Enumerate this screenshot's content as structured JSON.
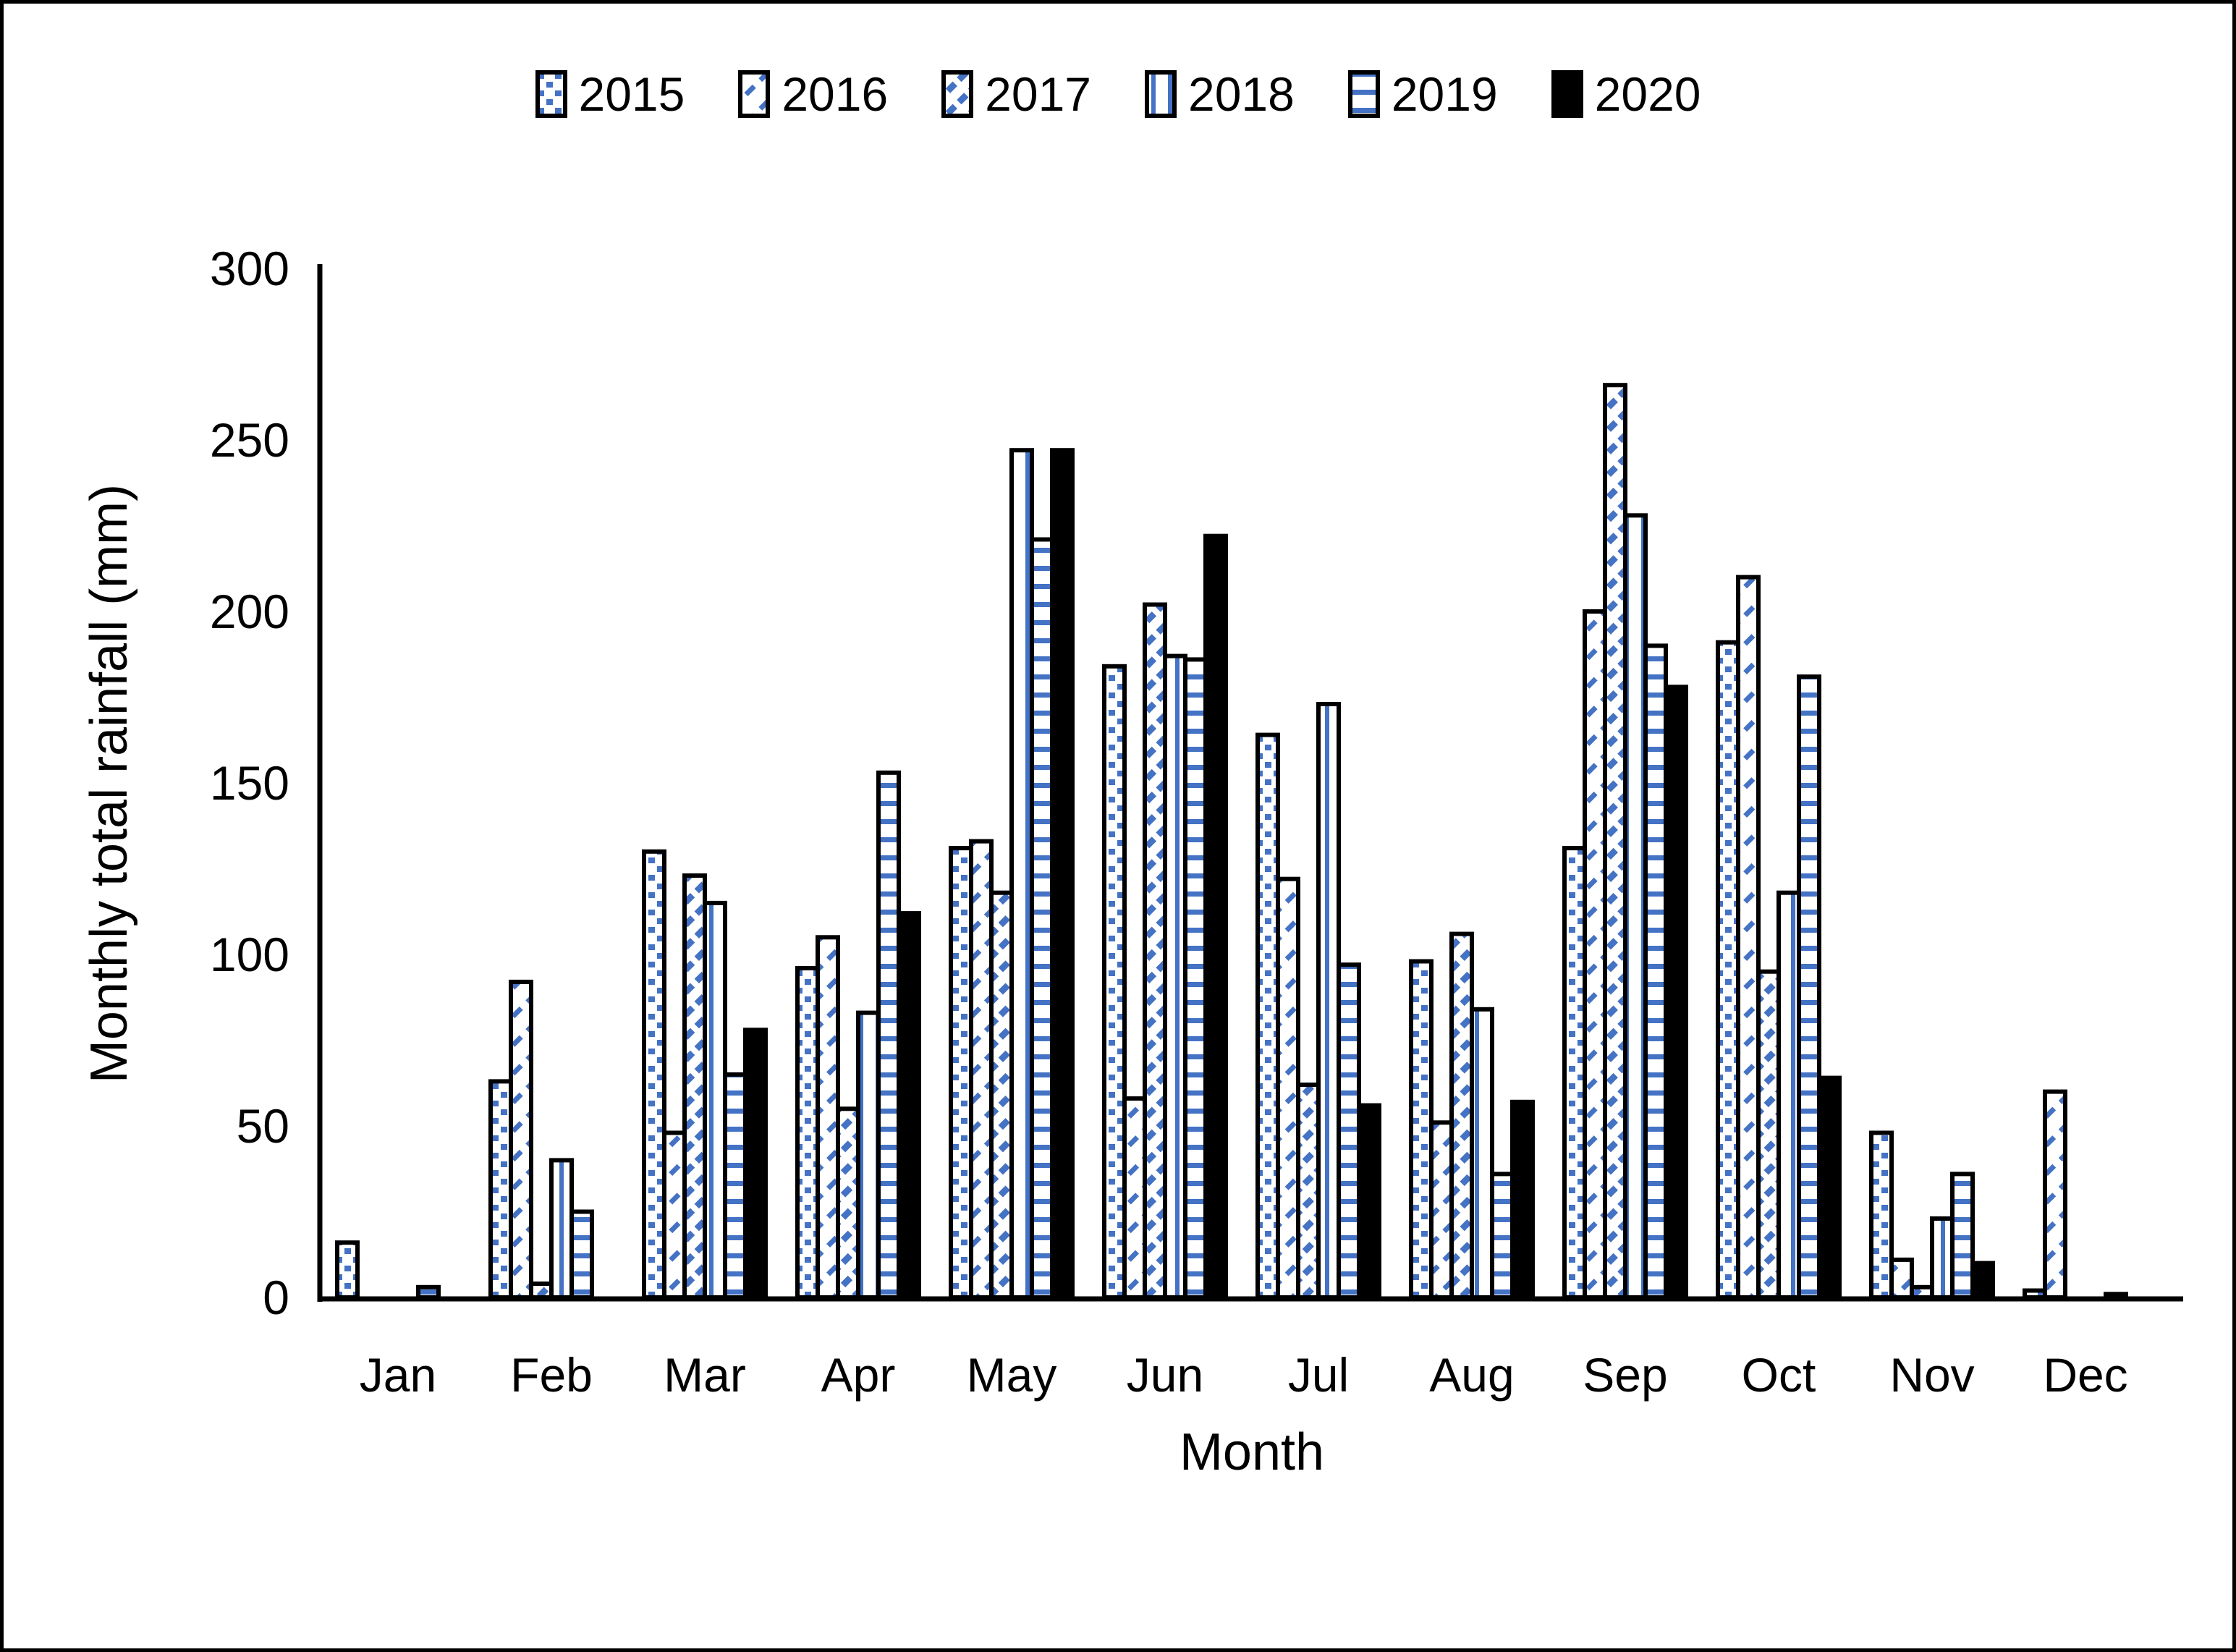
{
  "chart_data": {
    "type": "bar",
    "title": "",
    "xlabel": "Month",
    "ylabel": "Monthly total rainfall (mm)",
    "ylim": [
      0,
      300
    ],
    "yticks": [
      0,
      50,
      100,
      150,
      200,
      250,
      300
    ],
    "grid": "off",
    "legend_position": "top",
    "categories": [
      "Jan",
      "Feb",
      "Mar",
      "Apr",
      "May",
      "Jun",
      "Jul",
      "Aug",
      "Sep",
      "Oct",
      "Nov",
      "Dec"
    ],
    "series": [
      {
        "name": "2015",
        "pattern": "dots",
        "values": [
          16,
          63,
          130,
          96,
          131,
          184,
          164,
          98,
          131,
          191,
          48,
          2
        ]
      },
      {
        "name": "2016",
        "pattern": "diag-dash",
        "values": [
          0,
          92,
          48,
          105,
          133,
          58,
          122,
          51,
          200,
          210,
          11,
          60
        ]
      },
      {
        "name": "2017",
        "pattern": "diag-bold",
        "values": [
          0,
          4,
          123,
          55,
          118,
          202,
          62,
          106,
          266,
          95,
          3,
          0
        ]
      },
      {
        "name": "2018",
        "pattern": "vert-lines",
        "values": [
          0,
          40,
          115,
          83,
          247,
          187,
          173,
          84,
          228,
          118,
          23,
          0
        ]
      },
      {
        "name": "2019",
        "pattern": "horiz-lines",
        "values": [
          3,
          25,
          65,
          153,
          221,
          186,
          97,
          36,
          190,
          181,
          36,
          1
        ]
      },
      {
        "name": "2020",
        "pattern": "solid",
        "values": [
          0,
          0,
          78,
          112,
          247,
          222,
          56,
          57,
          178,
          64,
          10,
          0
        ]
      }
    ],
    "colors": {
      "pattern_blue": "#4472C4",
      "bar_border": "#000000",
      "axis": "#000000",
      "background": "#ffffff"
    }
  }
}
